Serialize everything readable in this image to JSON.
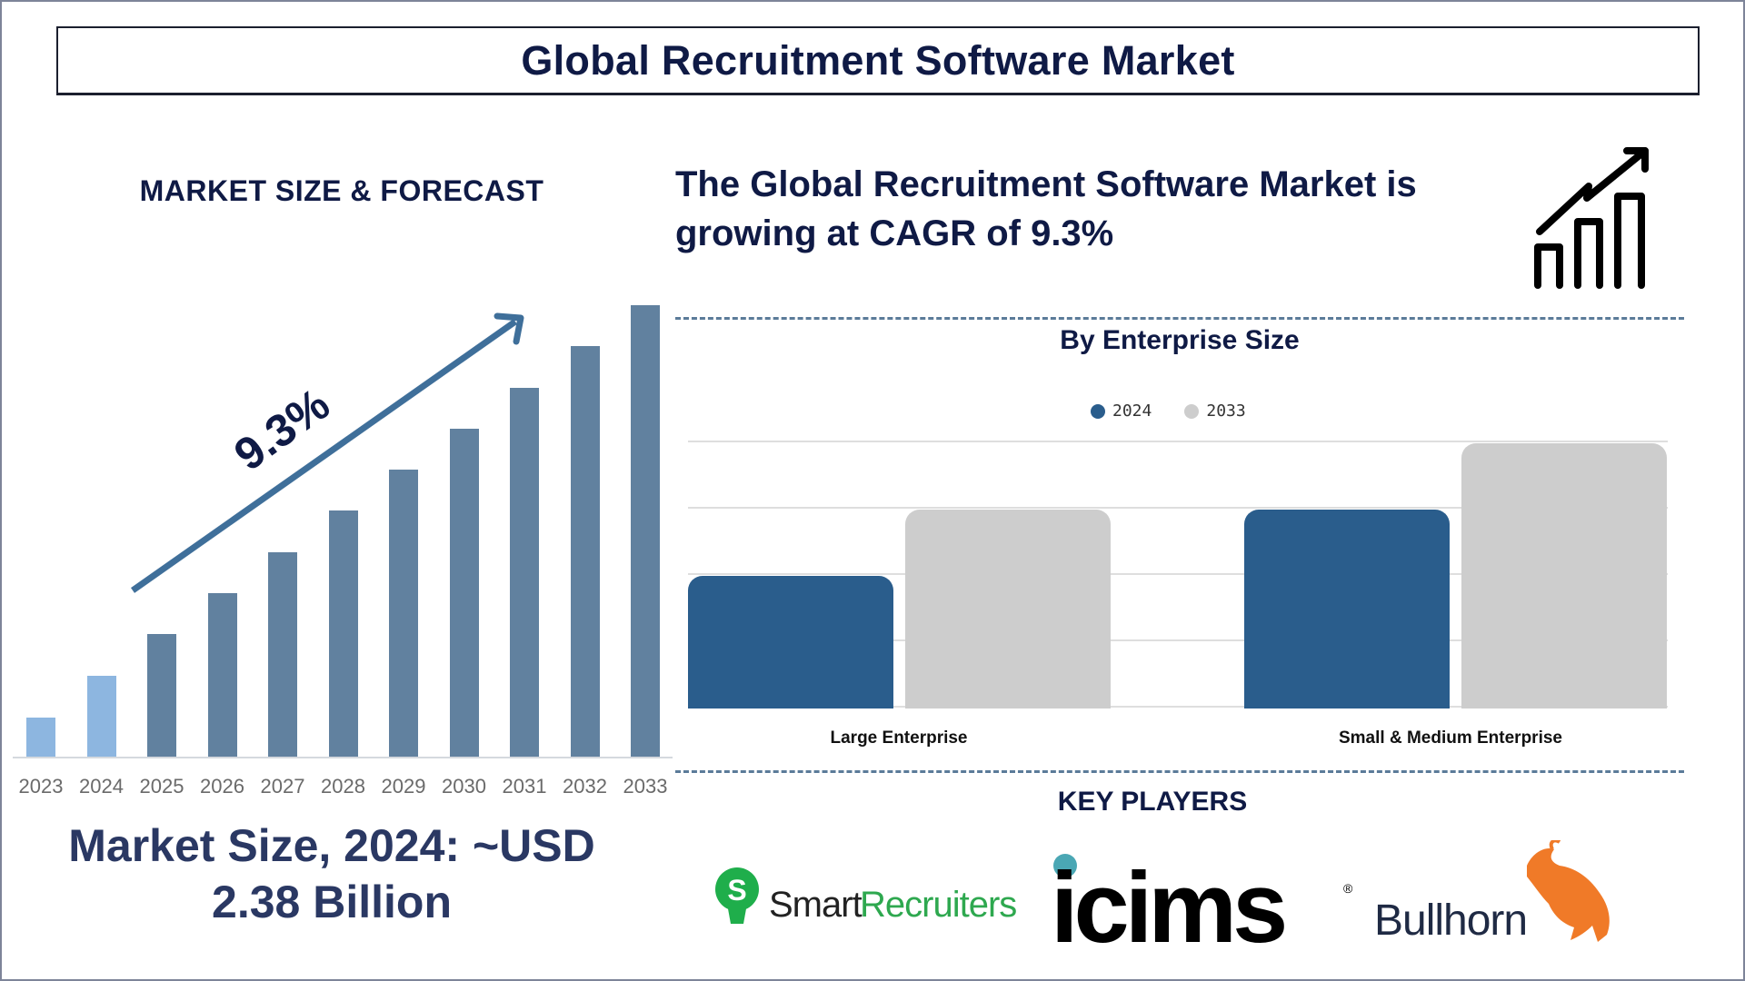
{
  "title": "Global Recruitment Software Market",
  "left_panel": {
    "heading": "MARKET SIZE & FORECAST",
    "cagr_label": "9.3%",
    "market_size_line1": "Market Size, 2024: ~USD",
    "market_size_line2": "2.38 Billion"
  },
  "right_panel": {
    "heading": "The Global Recruitment Software Market is growing at CAGR of 9.3%",
    "segment_heading": "By Enterprise Size",
    "key_players_heading": "KEY PLAYERS",
    "key_players": [
      "SmartRecruiters",
      "icims",
      "Bullhorn"
    ]
  },
  "colors": {
    "title_text": "#0f1a45",
    "historic_bar": "#8db6e0",
    "forecast_bar": "#61819f",
    "arrow": "#3f6f9a",
    "series_2024": "#2a5d8c",
    "series_2033": "#cdcdcd",
    "dash": "#5b7b99"
  },
  "chart_data": [
    {
      "type": "bar",
      "title": "MARKET SIZE & FORECAST",
      "categories": [
        "2023",
        "2024",
        "2025",
        "2026",
        "2027",
        "2028",
        "2029",
        "2030",
        "2031",
        "2032",
        "2033"
      ],
      "values": [
        35,
        73,
        110,
        147,
        184,
        221,
        258,
        295,
        332,
        369,
        406
      ],
      "value_units": "relative bar height (no axis shown)",
      "historic": [
        "2023",
        "2024"
      ],
      "forecast": [
        "2025",
        "2026",
        "2027",
        "2028",
        "2029",
        "2030",
        "2031",
        "2032",
        "2033"
      ],
      "annotation": "9.3%",
      "xlabel": "",
      "ylabel": "",
      "grid": false
    },
    {
      "type": "bar",
      "title": "By Enterprise Size",
      "categories": [
        "Large Enterprise",
        "Small & Medium Enterprise"
      ],
      "series": [
        {
          "name": "2024",
          "values": [
            2,
            3
          ]
        },
        {
          "name": "2033",
          "values": [
            3,
            4
          ]
        }
      ],
      "ylim": [
        0,
        4
      ],
      "grid": true,
      "legend_position": "top"
    }
  ]
}
